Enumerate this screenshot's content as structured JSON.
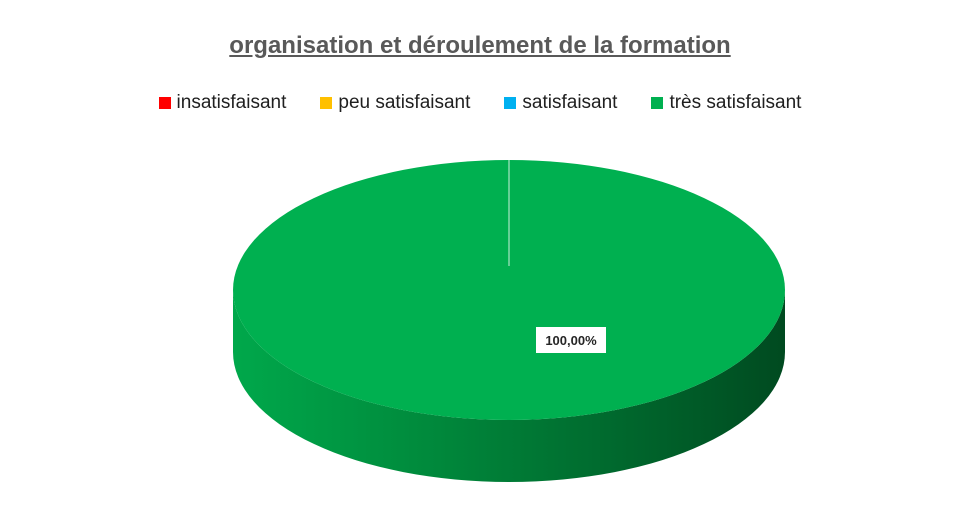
{
  "chart_data": {
    "type": "pie",
    "title": "organisation et déroulement de la formation",
    "categories": [
      "insatisfaisant",
      "peu satisfaisant",
      "satisfaisant",
      "très satisfaisant"
    ],
    "values": [
      0,
      0,
      0,
      100
    ],
    "data_labels": [
      "",
      "",
      "",
      "100,00%"
    ],
    "colors": [
      "#ff0000",
      "#ffc000",
      "#00b0f0",
      "#00b050"
    ],
    "legend_position": "top",
    "style": "3d"
  }
}
